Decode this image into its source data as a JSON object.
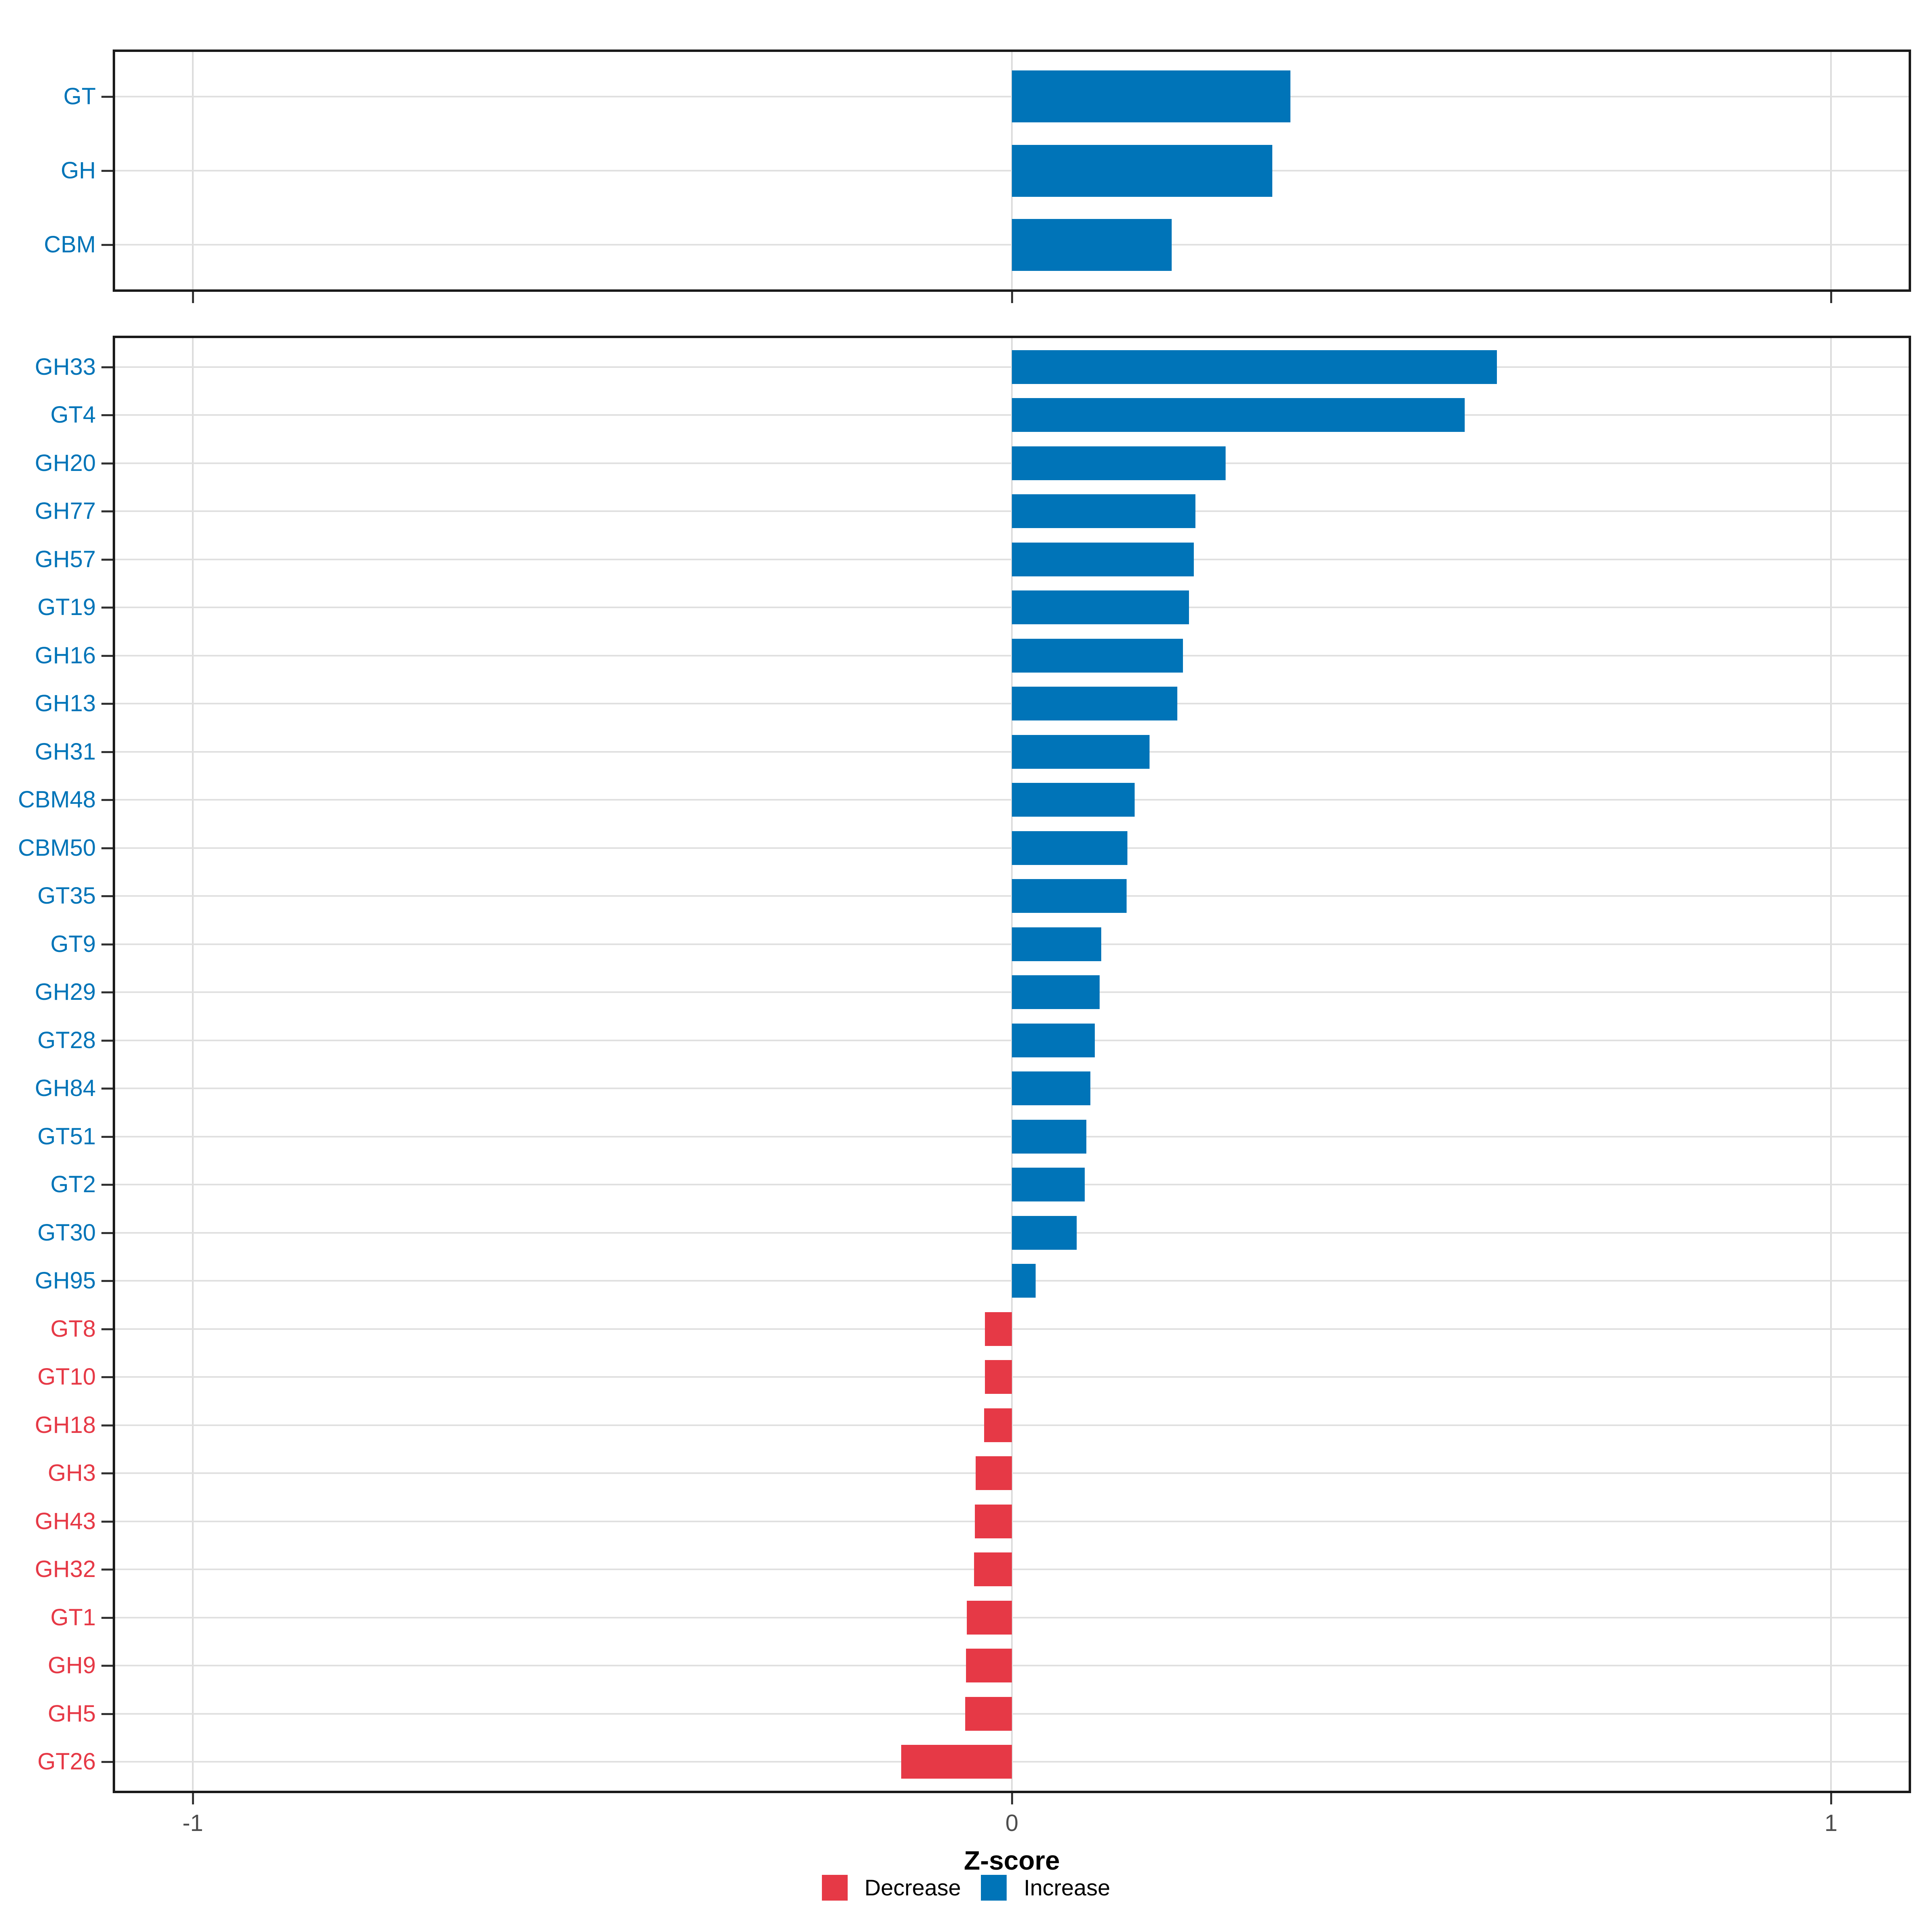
{
  "chart_data": {
    "type": "bar",
    "orientation": "horizontal",
    "title": "",
    "xlabel": "Z-score",
    "ylabel": "",
    "xlim": [
      -1.1,
      1.1
    ],
    "x_ticks": [
      -1,
      0,
      1
    ],
    "x_tick_labels": [
      "-1",
      "0",
      "1"
    ],
    "grid": "major",
    "legend_position": "bottom",
    "colors": {
      "increase": "#0074B8",
      "decrease": "#E63946"
    },
    "legend": [
      {
        "label": "Decrease",
        "direction": "decrease",
        "color": "#E63946"
      },
      {
        "label": "Increase",
        "direction": "increase",
        "color": "#0074B8"
      }
    ],
    "panels": [
      {
        "name": "enzyme-class-summary",
        "categories": [
          "GT",
          "GH",
          "CBM"
        ],
        "values": [
          0.34,
          0.318,
          0.195
        ]
      },
      {
        "name": "enzyme-families",
        "categories": [
          "GH33",
          "GT4",
          "GH20",
          "GH77",
          "GH57",
          "GT19",
          "GH16",
          "GH13",
          "GH31",
          "CBM48",
          "CBM50",
          "GT35",
          "GT9",
          "GH29",
          "GT28",
          "GH84",
          "GT51",
          "GT2",
          "GT30",
          "GH95",
          "GT8",
          "GT10",
          "GH18",
          "GH3",
          "GH43",
          "GH32",
          "GT1",
          "GH9",
          "GH5",
          "GT26"
        ],
        "values": [
          0.592,
          0.553,
          0.261,
          0.224,
          0.222,
          0.216,
          0.209,
          0.202,
          0.168,
          0.15,
          0.141,
          0.14,
          0.109,
          0.107,
          0.101,
          0.096,
          0.091,
          0.089,
          0.079,
          0.029,
          -0.033,
          -0.033,
          -0.034,
          -0.044,
          -0.045,
          -0.046,
          -0.055,
          -0.056,
          -0.057,
          -0.135
        ]
      }
    ]
  }
}
